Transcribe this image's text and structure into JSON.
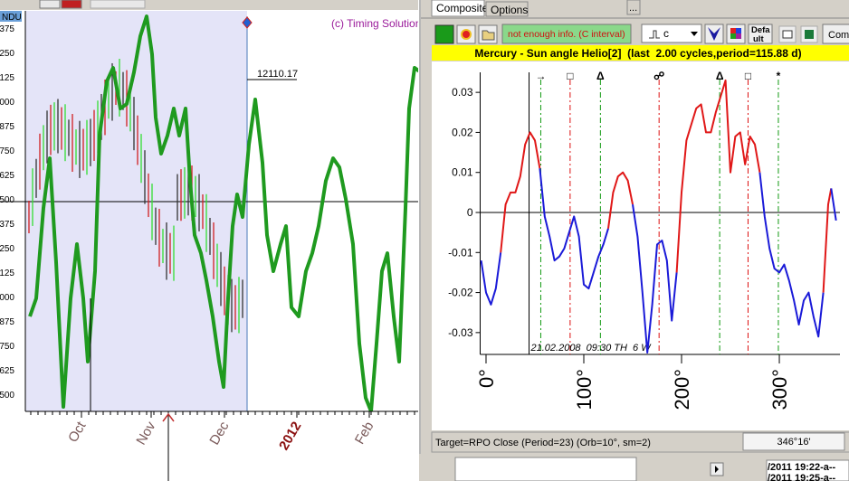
{
  "left_chart": {
    "index_label": "NDU",
    "copyright": "(c) Timing Solution",
    "price_label": "12110.17",
    "y_labels": [
      "375",
      "250",
      "125",
      "000",
      "875",
      "750",
      "625",
      "500",
      "375",
      "250",
      "125",
      "000",
      "875",
      "750",
      "625",
      "500"
    ],
    "months": [
      "Oct",
      "Nov",
      "Dec",
      "2012",
      "Feb"
    ]
  },
  "window": {
    "tabs": [
      "Composite",
      "Options"
    ],
    "more_button": "...",
    "info": "not enough info. (C interval)",
    "dropdown": "c",
    "default_button": [
      "Defa",
      "ult"
    ],
    "compose_button": "Com",
    "status": "Target=RPO Close (Period=23) (Orb=10°, sm=2)",
    "angle": "346°16'"
  },
  "taskbar": [
    "/2011 19:22-a--",
    "/2011 19:25-a--"
  ],
  "chart_data": {
    "type": "line",
    "title": "Mercury - Sun angle Helio[2]  (last  2.00 cycles,period=115.88 d)",
    "annotation": "21.02.2008  09:30 TH  6 W",
    "marker_x": 44,
    "xlim": [
      -6,
      362
    ],
    "ylim": [
      -0.035,
      0.035
    ],
    "xticks": [
      {
        "value": 0,
        "label": "0°"
      },
      {
        "value": 100,
        "label": "100°"
      },
      {
        "value": 200,
        "label": "200°"
      },
      {
        "value": 300,
        "label": "300°"
      }
    ],
    "yticks": [
      0.03,
      0.02,
      0.01,
      0,
      -0.01,
      -0.02,
      -0.03
    ],
    "positive_color": "#e01818",
    "negative_color": "#1a1ad8",
    "x": [
      -5,
      0,
      5,
      10,
      15,
      20,
      25,
      30,
      35,
      40,
      45,
      50,
      55,
      60,
      65,
      70,
      75,
      80,
      85,
      90,
      95,
      100,
      105,
      110,
      115,
      120,
      125,
      130,
      135,
      140,
      145,
      150,
      155,
      160,
      165,
      170,
      175,
      180,
      185,
      190,
      195,
      200,
      205,
      210,
      215,
      220,
      225,
      230,
      235,
      240,
      245,
      250,
      255,
      260,
      265,
      270,
      275,
      280,
      285,
      290,
      295,
      300,
      305,
      310,
      315,
      320,
      325,
      330,
      335,
      340,
      345,
      350,
      353,
      358
    ],
    "values": [
      -0.012,
      -0.02,
      -0.023,
      -0.019,
      -0.01,
      0.002,
      0.005,
      0.005,
      0.009,
      0.017,
      0.02,
      0.018,
      0.011,
      -0.001,
      -0.006,
      -0.012,
      -0.011,
      -0.009,
      -0.005,
      -0.001,
      -0.006,
      -0.018,
      -0.019,
      -0.015,
      -0.011,
      -0.008,
      -0.004,
      0.005,
      0.009,
      0.01,
      0.008,
      0.002,
      -0.006,
      -0.02,
      -0.035,
      -0.023,
      -0.008,
      -0.007,
      -0.012,
      -0.027,
      -0.015,
      0.005,
      0.018,
      0.022,
      0.026,
      0.027,
      0.02,
      0.02,
      0.025,
      0.029,
      0.033,
      0.01,
      0.019,
      0.02,
      0.012,
      0.019,
      0.017,
      0.01,
      -0.001,
      -0.009,
      -0.014,
      -0.015,
      -0.013,
      -0.017,
      -0.022,
      -0.028,
      -0.022,
      -0.02,
      -0.026,
      -0.031,
      -0.02,
      0.002,
      0.006,
      -0.002
    ],
    "aspects": [
      {
        "x": 56,
        "symbol": "→",
        "color": "#119911"
      },
      {
        "x": 86,
        "symbol": "□",
        "color": "#dd1111"
      },
      {
        "x": 117,
        "symbol": "Δ",
        "color": "#119911"
      },
      {
        "x": 177,
        "symbol": "☍",
        "color": "#dd1111"
      },
      {
        "x": 239,
        "symbol": "Δ",
        "color": "#119911"
      },
      {
        "x": 268,
        "symbol": "□",
        "color": "#dd1111"
      },
      {
        "x": 299,
        "symbol": "*",
        "color": "#119911"
      }
    ]
  }
}
